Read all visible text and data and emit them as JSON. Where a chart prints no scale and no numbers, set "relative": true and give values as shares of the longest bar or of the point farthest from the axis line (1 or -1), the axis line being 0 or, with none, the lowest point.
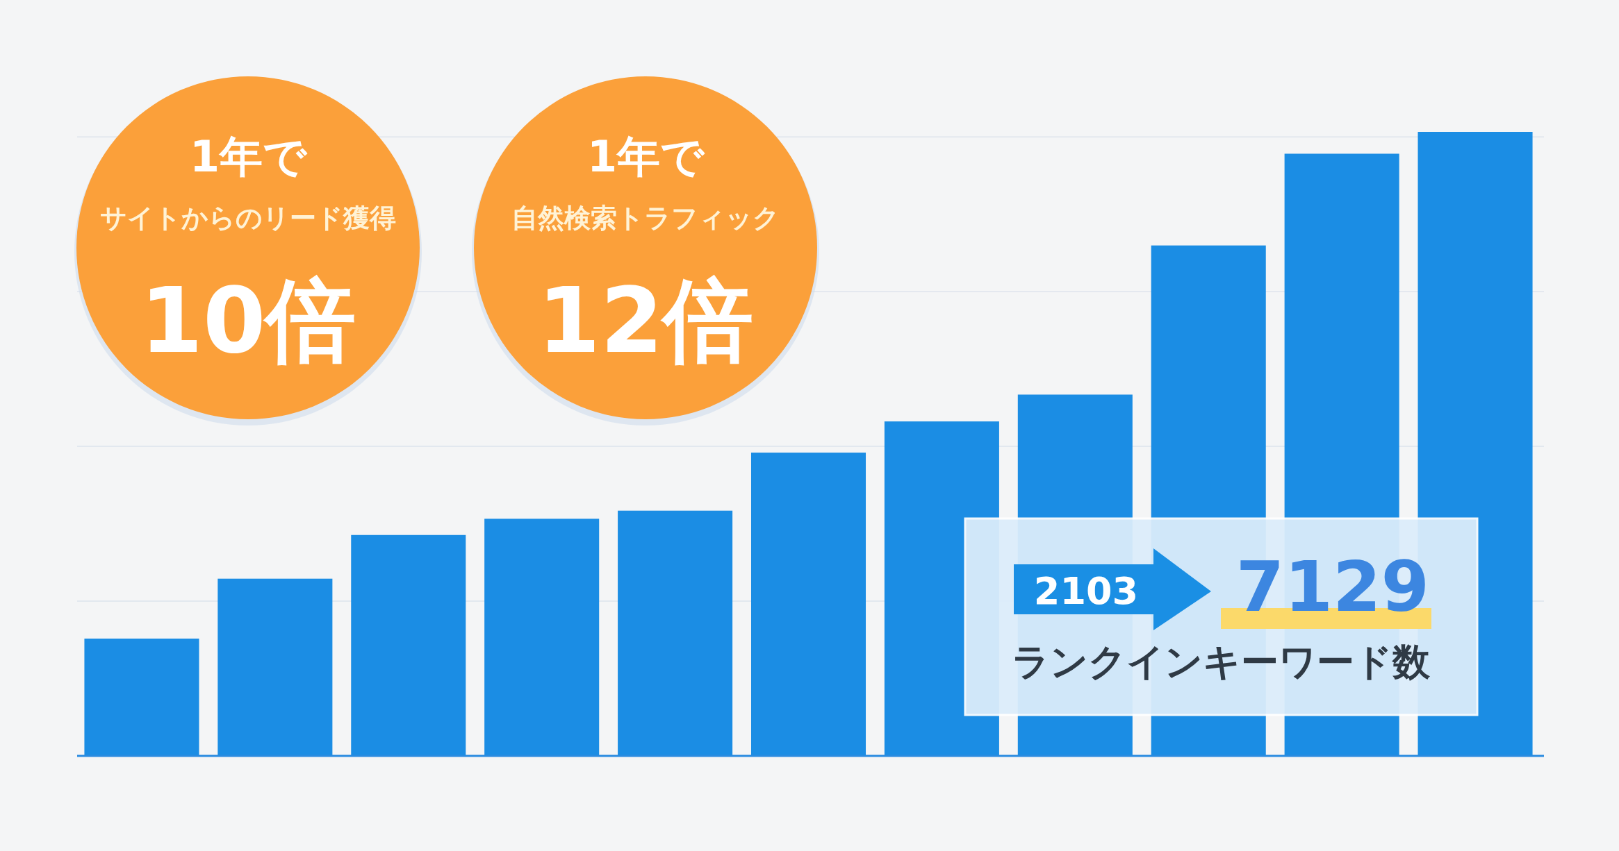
{
  "chart_data": {
    "type": "bar",
    "relative": true,
    "grid": true,
    "categories": [
      null,
      null,
      null,
      null,
      null,
      null,
      null,
      null,
      null,
      null,
      null
    ],
    "values": [
      0.188,
      0.284,
      0.354,
      0.38,
      0.393,
      0.486,
      0.536,
      0.579,
      0.818,
      0.965,
      1.0
    ],
    "color": "#1b8de4",
    "annotations": [
      "1年で",
      "サイトからのリード獲得",
      "10倍",
      "1年で",
      "自然検索トラフィック",
      "12倍",
      "2103",
      "7129",
      "ランクインキーワード数"
    ]
  }
}
